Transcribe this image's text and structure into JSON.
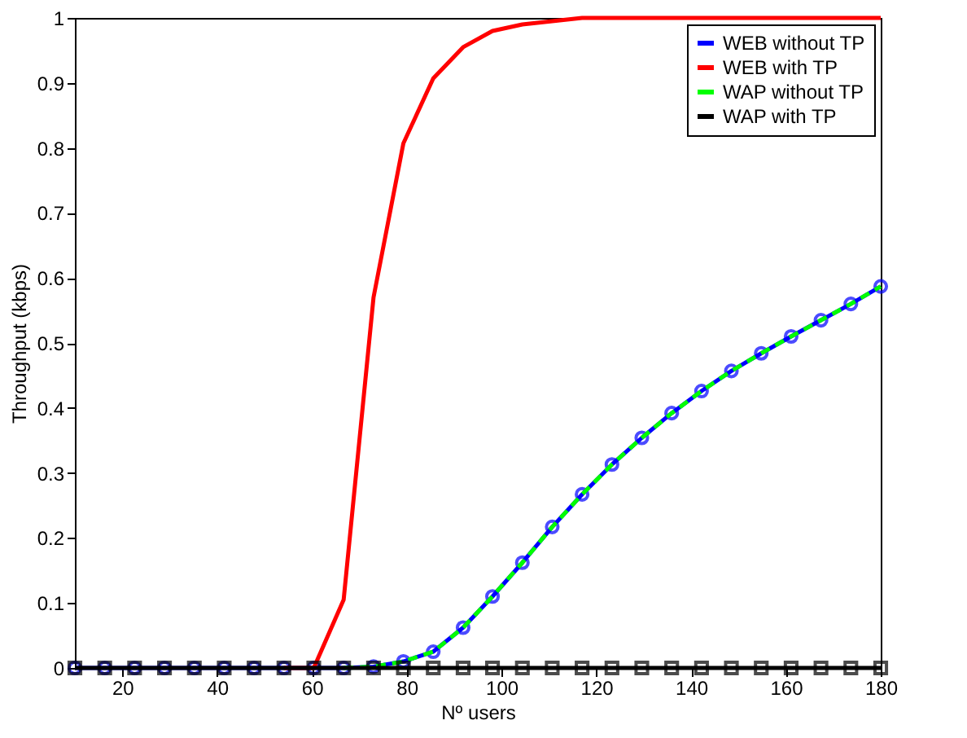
{
  "chart_data": {
    "type": "line",
    "xlabel": "Nº users",
    "ylabel": "Throughput (kbps)",
    "x": [
      10,
      16.3,
      22.6,
      28.9,
      35.2,
      41.5,
      47.8,
      54.1,
      60.4,
      66.7,
      73.0,
      79.3,
      85.6,
      91.9,
      98.1,
      104.4,
      110.7,
      117.0,
      123.3,
      129.6,
      135.9,
      142.2,
      148.5,
      154.8,
      161.1,
      167.4,
      173.7,
      180
    ],
    "xlim": [
      10,
      180
    ],
    "xticks": [
      20,
      40,
      60,
      80,
      100,
      120,
      140,
      160,
      180
    ],
    "ylim": [
      0,
      1
    ],
    "yticks": [
      0,
      0.1,
      0.2,
      0.3,
      0.4,
      0.5,
      0.6,
      0.7,
      0.8,
      0.9,
      1
    ],
    "grid": false,
    "legend": "top right",
    "series": [
      {
        "name": "WEB without TP",
        "color": "#0000ff",
        "marker": "circle",
        "line_style": "solid",
        "values": [
          0,
          0,
          0,
          0,
          0,
          0,
          0,
          0,
          0,
          0,
          0.002,
          0.01,
          0.025,
          0.062,
          0.11,
          0.162,
          0.217,
          0.267,
          0.313,
          0.354,
          0.392,
          0.426,
          0.457,
          0.484,
          0.51,
          0.535,
          0.56,
          0.587
        ]
      },
      {
        "name": "WEB with TP",
        "color": "#ff0000",
        "marker": "none",
        "line_style": "solid",
        "values": [
          null,
          null,
          null,
          null,
          null,
          null,
          null,
          0,
          0,
          0.105,
          0.57,
          0.807,
          0.907,
          0.955,
          0.98,
          0.99,
          0.995,
          1,
          1,
          1,
          1,
          1,
          1,
          1,
          1,
          1,
          1,
          1
        ]
      },
      {
        "name": "WAP without TP",
        "color": "#00ff00",
        "marker": "none",
        "line_style": "dashed",
        "values": [
          null,
          null,
          null,
          null,
          null,
          null,
          null,
          null,
          null,
          0,
          0.002,
          0.01,
          0.025,
          0.062,
          0.11,
          0.162,
          0.217,
          0.267,
          0.313,
          0.354,
          0.392,
          0.426,
          0.457,
          0.484,
          0.51,
          0.535,
          0.56,
          0.587
        ]
      },
      {
        "name": "WAP with TP",
        "color": "#000000",
        "marker": "square",
        "line_style": "solid",
        "values": [
          0,
          0,
          0,
          0,
          0,
          0,
          0,
          0,
          0,
          0,
          0,
          0,
          0,
          0,
          0,
          0,
          0,
          0,
          0,
          0,
          0,
          0,
          0,
          0,
          0,
          0,
          0,
          0
        ]
      }
    ]
  }
}
